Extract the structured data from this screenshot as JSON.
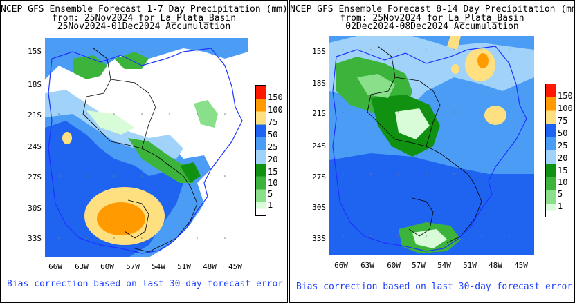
{
  "panels": [
    {
      "title_line1": "NCEP GFS Ensemble Forecast 1-7 Day Precipitation (mm)",
      "title_line2": "from: 25Nov2024   for La_Plata_Basin",
      "title_line3": "25Nov2024-01Dec2024 Accumulation",
      "lat_labels": [
        "15S",
        "18S",
        "21S",
        "24S",
        "27S",
        "30S",
        "33S"
      ],
      "lon_labels": [
        "66W",
        "63W",
        "60W",
        "57W",
        "54W",
        "51W",
        "48W",
        "45W"
      ],
      "footer": "Bias correction based on last 30-day forecast error"
    },
    {
      "title_line1": "NCEP GFS Ensemble Forecast 8-14 Day Precipitation (mm",
      "title_line2": "from: 25Nov2024   for La_Plata_Basin",
      "title_line3": "02Dec2024-08Dec2024 Accumulation",
      "lat_labels": [
        "15S",
        "18S",
        "21S",
        "24S",
        "27S",
        "30S",
        "33S"
      ],
      "lon_labels": [
        "66W",
        "63W",
        "60W",
        "57W",
        "54W",
        "51W",
        "48W",
        "45W"
      ],
      "footer": "Bias correction based on last 30-day forecast error"
    }
  ],
  "legend": {
    "labels": [
      "150",
      "100",
      "75",
      "50",
      "25",
      "20",
      "15",
      "10",
      "5",
      "1"
    ],
    "colors": [
      "#ff1800",
      "#ff9b00",
      "#ffe080",
      "#1e64f0",
      "#4a9cf5",
      "#a0d2fa",
      "#119111",
      "#3cb43c",
      "#8ae08a",
      "#d8fbd8",
      "#ffffff"
    ]
  }
}
